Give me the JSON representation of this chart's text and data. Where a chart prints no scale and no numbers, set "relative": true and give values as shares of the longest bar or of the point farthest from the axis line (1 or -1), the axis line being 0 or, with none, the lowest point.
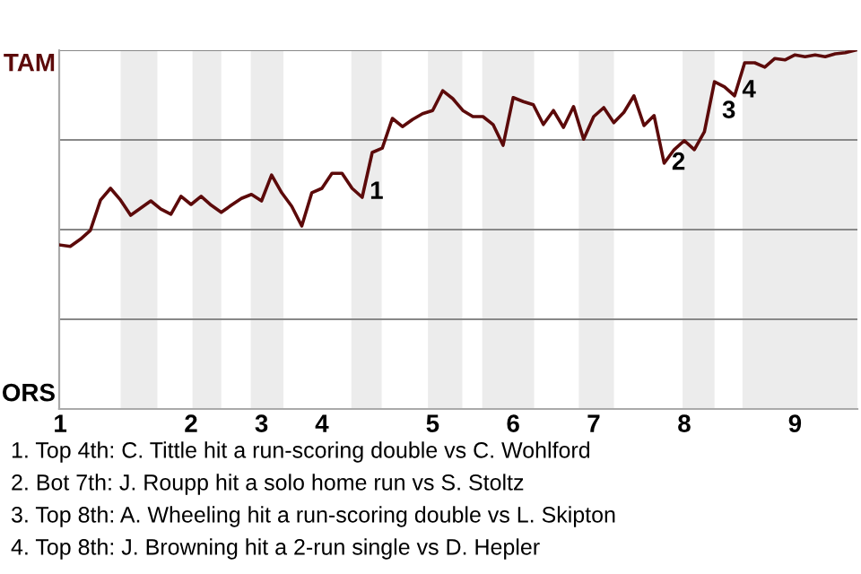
{
  "chart_data": {
    "type": "line",
    "categories": [
      "1",
      null,
      null,
      null,
      null,
      null,
      null,
      null,
      null,
      null,
      null,
      null,
      null,
      "2",
      null,
      null,
      null,
      null,
      null,
      null,
      "3",
      null,
      null,
      null,
      null,
      null,
      "4",
      null,
      null,
      null,
      null,
      null,
      null,
      null,
      null,
      null,
      null,
      "5",
      null,
      null,
      null,
      null,
      null,
      null,
      null,
      "6",
      null,
      null,
      null,
      null,
      null,
      null,
      null,
      "7",
      null,
      null,
      null,
      null,
      null,
      null,
      null,
      null,
      "8",
      null,
      null,
      null,
      null,
      null,
      null,
      null,
      null,
      null,
      null,
      "9",
      null,
      null,
      null,
      null,
      null,
      null
    ],
    "relative": true,
    "series": [
      {
        "color": "#5c0a0a",
        "values": [
          0.457,
          0.453,
          0.473,
          0.498,
          0.582,
          0.615,
          0.582,
          0.54,
          0.56,
          0.58,
          0.557,
          0.543,
          0.593,
          0.57,
          0.593,
          0.568,
          0.548,
          0.568,
          0.587,
          0.598,
          0.58,
          0.652,
          0.603,
          0.565,
          0.51,
          0.603,
          0.615,
          0.657,
          0.657,
          0.615,
          0.59,
          0.715,
          0.727,
          0.81,
          0.787,
          0.807,
          0.823,
          0.832,
          0.887,
          0.865,
          0.832,
          0.815,
          0.815,
          0.793,
          0.735,
          0.868,
          0.857,
          0.848,
          0.793,
          0.832,
          0.785,
          0.843,
          0.752,
          0.815,
          0.84,
          0.798,
          0.827,
          0.873,
          0.79,
          0.818,
          0.685,
          0.723,
          0.748,
          0.723,
          0.773,
          0.912,
          0.898,
          0.873,
          0.965,
          0.965,
          0.953,
          0.977,
          0.973,
          0.987,
          0.982,
          0.987,
          0.982,
          0.99,
          0.993,
          1
        ]
      }
    ],
    "annotations": [
      "TAM",
      "ORS",
      "1",
      "2",
      "3",
      "4",
      "1. Top 4th: C. Tittle hit a run-scoring double vs C. Wohlford",
      "2. Bot 7th: J. Roupp hit a solo home run vs S. Stoltz",
      "3. Top 8th: A. Wheeling hit a run-scoring double vs L. Skipton",
      "4. Top 8th: J. Browning hit a 2-run single vs D. Hepler"
    ]
  }
}
